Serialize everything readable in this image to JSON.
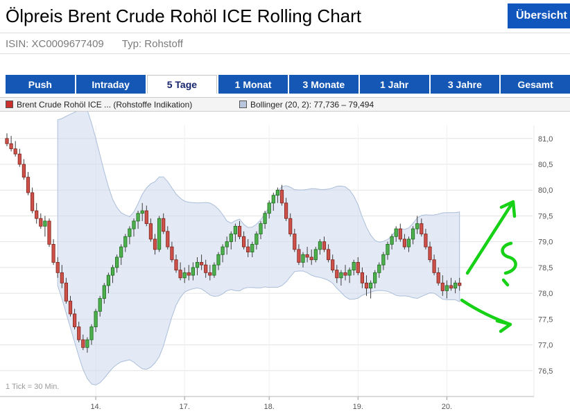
{
  "header": {
    "title": "Ölpreis Brent Crude Rohöl ICE Rolling Chart",
    "overview_button": "Übersicht"
  },
  "meta": {
    "isin_text": "ISIN: XC0009677409",
    "typ_text": "Typ: Rohstoff"
  },
  "tabs": [
    {
      "label": "Push",
      "active": false
    },
    {
      "label": "Intraday",
      "active": false
    },
    {
      "label": "5 Tage",
      "active": true
    },
    {
      "label": "1 Monat",
      "active": false
    },
    {
      "label": "3 Monate",
      "active": false
    },
    {
      "label": "1 Jahr",
      "active": false
    },
    {
      "label": "3 Jahre",
      "active": false
    },
    {
      "label": "Gesamt",
      "active": false
    }
  ],
  "legend": {
    "brent_label": "Brent Crude Rohöl ICE ... (Rohstoffe Indikation)",
    "brent_color": "#c9302c",
    "bollinger_label": "Bollinger (20, 2): 77,736 – 79,494",
    "bollinger_color": "#b9c6de"
  },
  "footnote": "1 Tick = 30 Min.",
  "colors": {
    "up": "#4db04d",
    "up_border": "#1d6b1d",
    "down": "#cd5049",
    "down_border": "#7d241d",
    "wick": "#3c3c3c",
    "band": "#cdd9ec",
    "band_edge": "#aabed9",
    "grid": "#e4e4e4",
    "axis": "#b5b5b5",
    "tick_text": "#555555",
    "annotation_green": "#17d117",
    "tab_blue": "#1557b5"
  },
  "annotations": [
    {
      "name": "green-up-arrow",
      "meaning": "hand-drawn upward trend arrow"
    },
    {
      "name": "green-squiggle",
      "meaning": "hand-drawn question squiggle"
    },
    {
      "name": "green-down-arrow",
      "meaning": "hand-drawn downward trend arrow"
    }
  ],
  "chart_data": {
    "type": "candlestick",
    "title": "Brent Crude Rohöl ICE Rolling, 5 Tage",
    "interval_note": "1 Tick = 30 Min.",
    "ylim": [
      76.0,
      81.3
    ],
    "yticks": [
      76.5,
      77.0,
      77.5,
      78.0,
      78.5,
      79.0,
      79.5,
      80.0,
      80.5,
      81.0
    ],
    "ytick_labels": [
      "76,5",
      "77,0",
      "77,5",
      "78,0",
      "78,5",
      "79,0",
      "79,5",
      "80,0",
      "80,5",
      "81,0"
    ],
    "xticks": [
      {
        "label": "14.",
        "index": 21
      },
      {
        "label": "17.",
        "index": 42
      },
      {
        "label": "18.",
        "index": 62
      },
      {
        "label": "19.",
        "index": 83
      },
      {
        "label": "20.",
        "index": 104
      }
    ],
    "bollinger": {
      "window": 20,
      "mult": 2,
      "current_range": "77,736 – 79,494"
    },
    "candles": [
      [
        81.0,
        81.1,
        80.85,
        80.9
      ],
      [
        80.9,
        81.05,
        80.75,
        80.8
      ],
      [
        80.8,
        80.95,
        80.65,
        80.7
      ],
      [
        80.7,
        80.8,
        80.45,
        80.5
      ],
      [
        80.5,
        80.6,
        80.2,
        80.25
      ],
      [
        80.25,
        80.35,
        79.9,
        79.95
      ],
      [
        79.95,
        80.05,
        79.55,
        79.6
      ],
      [
        79.6,
        79.75,
        79.35,
        79.45
      ],
      [
        79.45,
        79.55,
        79.25,
        79.3
      ],
      [
        79.3,
        79.5,
        79.1,
        79.4
      ],
      [
        79.4,
        79.45,
        78.9,
        78.95
      ],
      [
        78.95,
        79.05,
        78.55,
        78.6
      ],
      [
        78.6,
        78.7,
        78.3,
        78.4
      ],
      [
        78.4,
        78.55,
        78.1,
        78.2
      ],
      [
        78.2,
        78.3,
        77.8,
        77.85
      ],
      [
        77.85,
        77.95,
        77.55,
        77.6
      ],
      [
        77.6,
        77.7,
        77.3,
        77.35
      ],
      [
        77.35,
        77.45,
        77.05,
        77.1
      ],
      [
        77.1,
        77.2,
        76.9,
        76.95
      ],
      [
        76.95,
        77.15,
        76.85,
        77.1
      ],
      [
        77.1,
        77.4,
        77.0,
        77.35
      ],
      [
        77.35,
        77.7,
        77.25,
        77.65
      ],
      [
        77.65,
        77.95,
        77.55,
        77.9
      ],
      [
        77.9,
        78.2,
        77.8,
        78.15
      ],
      [
        78.15,
        78.4,
        78.0,
        78.35
      ],
      [
        78.35,
        78.55,
        78.2,
        78.5
      ],
      [
        78.5,
        78.75,
        78.4,
        78.7
      ],
      [
        78.7,
        78.95,
        78.55,
        78.9
      ],
      [
        78.9,
        79.15,
        78.8,
        79.1
      ],
      [
        79.1,
        79.3,
        78.95,
        79.25
      ],
      [
        79.25,
        79.45,
        79.1,
        79.4
      ],
      [
        79.4,
        79.6,
        79.25,
        79.55
      ],
      [
        79.55,
        79.75,
        79.4,
        79.6
      ],
      [
        79.6,
        79.7,
        79.3,
        79.35
      ],
      [
        79.35,
        79.45,
        79.0,
        79.05
      ],
      [
        79.05,
        79.15,
        78.75,
        78.85
      ],
      [
        78.85,
        79.5,
        78.8,
        79.45
      ],
      [
        79.45,
        79.55,
        79.15,
        79.2
      ],
      [
        79.2,
        79.3,
        78.85,
        78.9
      ],
      [
        78.9,
        79.0,
        78.6,
        78.65
      ],
      [
        78.65,
        78.75,
        78.4,
        78.45
      ],
      [
        78.45,
        78.6,
        78.25,
        78.3
      ],
      [
        78.3,
        78.5,
        78.2,
        78.4
      ],
      [
        78.4,
        78.55,
        78.25,
        78.35
      ],
      [
        78.35,
        78.6,
        78.25,
        78.5
      ],
      [
        78.5,
        78.7,
        78.35,
        78.6
      ],
      [
        78.6,
        78.75,
        78.45,
        78.55
      ],
      [
        78.55,
        78.65,
        78.3,
        78.4
      ],
      [
        78.4,
        78.55,
        78.25,
        78.35
      ],
      [
        78.35,
        78.6,
        78.3,
        78.55
      ],
      [
        78.55,
        78.8,
        78.45,
        78.75
      ],
      [
        78.75,
        78.95,
        78.6,
        78.9
      ],
      [
        78.9,
        79.1,
        78.75,
        79.0
      ],
      [
        79.0,
        79.2,
        78.85,
        79.15
      ],
      [
        79.15,
        79.35,
        79.0,
        79.3
      ],
      [
        79.3,
        79.4,
        79.05,
        79.1
      ],
      [
        79.1,
        79.2,
        78.85,
        78.9
      ],
      [
        78.9,
        79.05,
        78.7,
        78.8
      ],
      [
        78.8,
        79.0,
        78.7,
        78.95
      ],
      [
        78.95,
        79.2,
        78.85,
        79.15
      ],
      [
        79.15,
        79.4,
        79.05,
        79.35
      ],
      [
        79.35,
        79.6,
        79.25,
        79.55
      ],
      [
        79.55,
        79.8,
        79.45,
        79.75
      ],
      [
        79.75,
        79.95,
        79.6,
        79.9
      ],
      [
        79.9,
        80.05,
        79.75,
        80.0
      ],
      [
        80.0,
        80.1,
        79.7,
        79.75
      ],
      [
        79.75,
        79.85,
        79.4,
        79.45
      ],
      [
        79.45,
        79.55,
        79.1,
        79.15
      ],
      [
        79.15,
        79.25,
        78.8,
        78.85
      ],
      [
        78.85,
        78.95,
        78.55,
        78.6
      ],
      [
        78.6,
        78.8,
        78.5,
        78.75
      ],
      [
        78.75,
        78.9,
        78.6,
        78.7
      ],
      [
        78.7,
        78.85,
        78.55,
        78.65
      ],
      [
        78.65,
        78.9,
        78.6,
        78.85
      ],
      [
        78.85,
        79.05,
        78.75,
        79.0
      ],
      [
        79.0,
        79.1,
        78.8,
        78.85
      ],
      [
        78.85,
        78.95,
        78.6,
        78.65
      ],
      [
        78.65,
        78.75,
        78.4,
        78.45
      ],
      [
        78.45,
        78.55,
        78.2,
        78.3
      ],
      [
        78.3,
        78.45,
        78.15,
        78.4
      ],
      [
        78.4,
        78.55,
        78.25,
        78.35
      ],
      [
        78.35,
        78.5,
        78.2,
        78.45
      ],
      [
        78.45,
        78.65,
        78.35,
        78.6
      ],
      [
        78.6,
        78.7,
        78.35,
        78.4
      ],
      [
        78.4,
        78.5,
        78.1,
        78.2
      ],
      [
        78.2,
        78.35,
        77.95,
        78.1
      ],
      [
        78.1,
        78.25,
        77.9,
        78.2
      ],
      [
        78.2,
        78.45,
        78.1,
        78.4
      ],
      [
        78.4,
        78.6,
        78.3,
        78.55
      ],
      [
        78.55,
        78.8,
        78.45,
        78.75
      ],
      [
        78.75,
        79.0,
        78.65,
        78.95
      ],
      [
        78.95,
        79.15,
        78.85,
        79.1
      ],
      [
        79.1,
        79.3,
        79.0,
        79.25
      ],
      [
        79.25,
        79.35,
        79.0,
        79.05
      ],
      [
        79.05,
        79.15,
        78.85,
        78.9
      ],
      [
        78.9,
        79.1,
        78.8,
        79.05
      ],
      [
        79.05,
        79.3,
        78.95,
        79.25
      ],
      [
        79.25,
        79.5,
        79.15,
        79.35
      ],
      [
        79.35,
        79.45,
        79.1,
        79.15
      ],
      [
        79.15,
        79.25,
        78.85,
        78.9
      ],
      [
        78.9,
        79.0,
        78.6,
        78.65
      ],
      [
        78.65,
        78.75,
        78.35,
        78.4
      ],
      [
        78.4,
        78.5,
        78.15,
        78.2
      ],
      [
        78.2,
        78.35,
        77.95,
        78.05
      ],
      [
        78.05,
        78.25,
        77.9,
        78.15
      ],
      [
        78.15,
        78.3,
        78.05,
        78.1
      ],
      [
        78.1,
        78.25,
        78.0,
        78.2
      ],
      [
        78.2,
        78.3,
        78.05,
        78.15
      ]
    ]
  }
}
